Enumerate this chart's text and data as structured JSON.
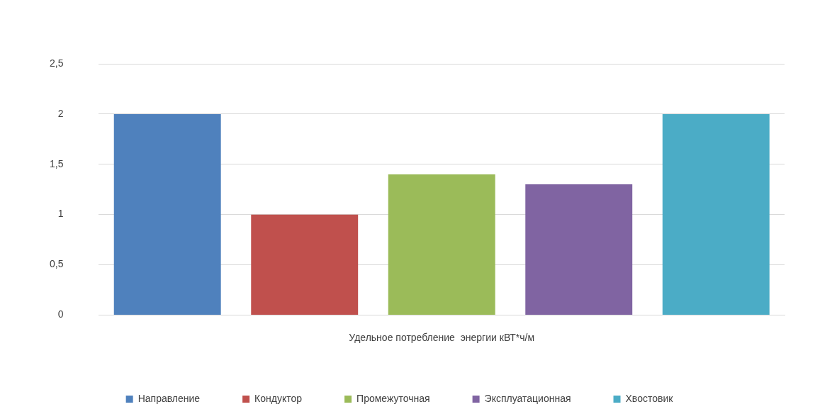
{
  "chart_data": {
    "type": "bar",
    "categories": [
      null,
      null,
      null,
      null,
      null
    ],
    "xlabel": "Удельное потребление  энергии кВТ*ч/м",
    "series": [
      {
        "name": "Направление",
        "color": "#4f81bd",
        "values": [
          2,
          null,
          null,
          null,
          null
        ]
      },
      {
        "name": "Кондуктор",
        "color": "#c0504d",
        "values": [
          null,
          1,
          null,
          null,
          null
        ]
      },
      {
        "name": "Промежуточная",
        "color": "#9bbb59",
        "values": [
          null,
          null,
          1.4,
          null,
          null
        ]
      },
      {
        "name": "Эксплуатационная",
        "color": "#8064a2",
        "values": [
          null,
          null,
          null,
          1.3,
          null
        ]
      },
      {
        "name": "Хвостовик",
        "color": "#4bacc6",
        "values": [
          null,
          null,
          null,
          null,
          2
        ]
      }
    ],
    "ylim": [
      0,
      2.5
    ],
    "yticks": [
      0,
      {
        "value": 0.5,
        "label": "0,5"
      },
      1,
      {
        "value": 1.5,
        "label": "1,5"
      },
      2,
      {
        "value": 2.5,
        "label": "2,5"
      }
    ],
    "grid": "y",
    "legend": "bottom"
  }
}
